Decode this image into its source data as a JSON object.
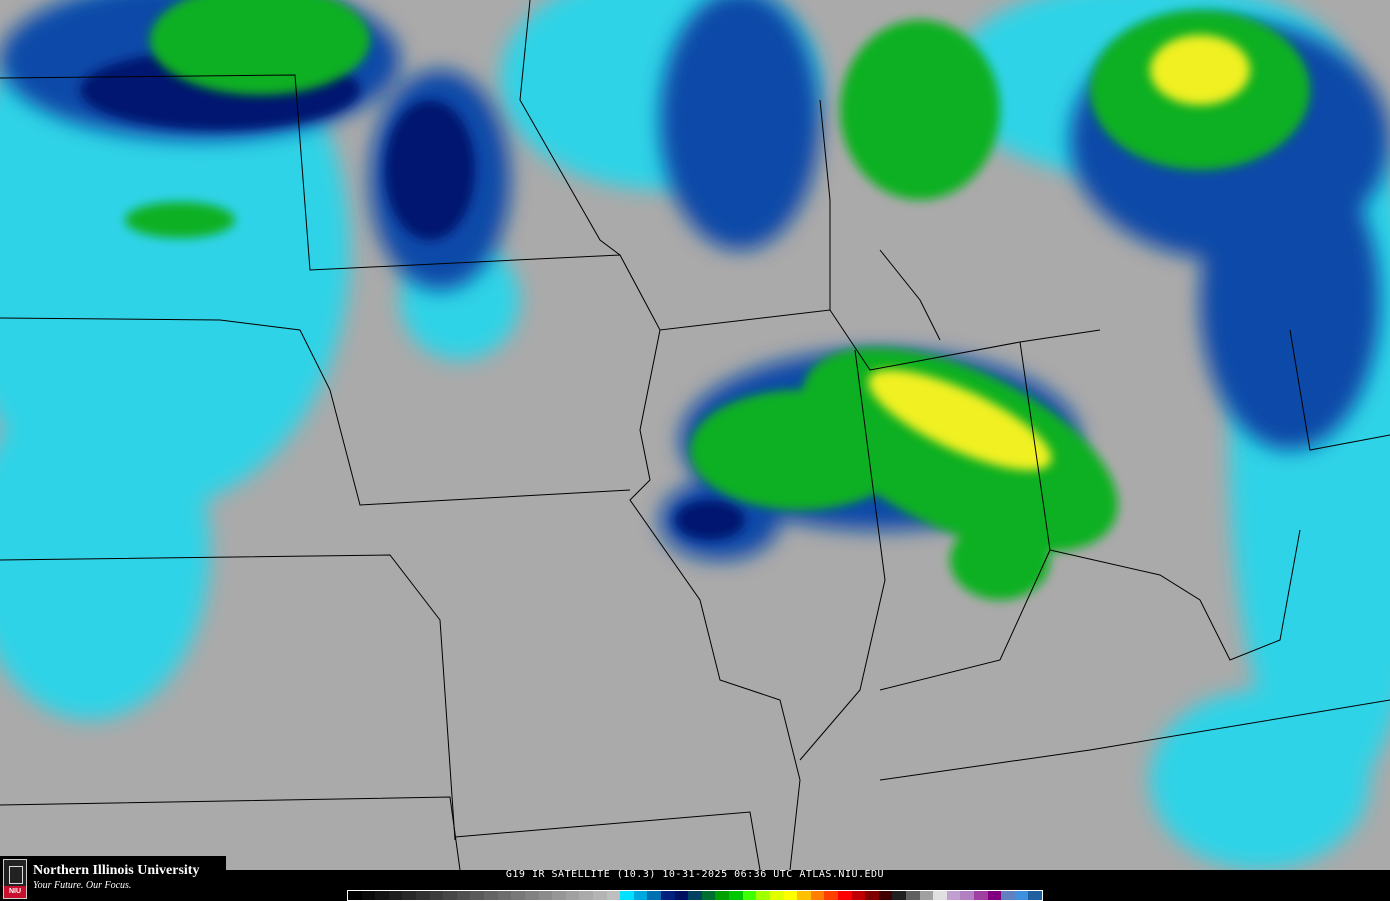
{
  "caption": "G19 IR SATELLITE (10.3) 10-31-2025 06:36 UTC  ATLAS.NIU.EDU",
  "logo": {
    "name": "Northern Illinois University",
    "tagline": "Your Future. Our Focus.",
    "badge": "NIU"
  },
  "colors": {
    "land": "#a9a9a9",
    "cloud_low": "#00ffff",
    "cloud_mid": "#0000a0",
    "cloud_high": "#00c000",
    "cloud_top": "#ffff00",
    "border": "#000000"
  },
  "colorbar": [
    "#000000",
    "#0a0a0a",
    "#141414",
    "#1e1e1e",
    "#282828",
    "#323232",
    "#3c3c3c",
    "#464646",
    "#505050",
    "#5a5a5a",
    "#646464",
    "#6e6e6e",
    "#787878",
    "#828282",
    "#8c8c8c",
    "#969696",
    "#a0a0a0",
    "#aaaaaa",
    "#b4b4b4",
    "#bebebe",
    "#00e0ff",
    "#00a8e0",
    "#0070b0",
    "#002080",
    "#001060",
    "#004060",
    "#007030",
    "#00a000",
    "#00c800",
    "#40ff00",
    "#a0ff00",
    "#e0ff00",
    "#ffff00",
    "#ffc000",
    "#ff8000",
    "#ff4000",
    "#ff0000",
    "#c00000",
    "#800000",
    "#400000",
    "#202020",
    "#606060",
    "#a0a0a0",
    "#e0e0e0",
    "#c0a0d0",
    "#b080c0",
    "#a040a0",
    "#800080",
    "#6080c0",
    "#4090e0",
    "#2060a0"
  ]
}
